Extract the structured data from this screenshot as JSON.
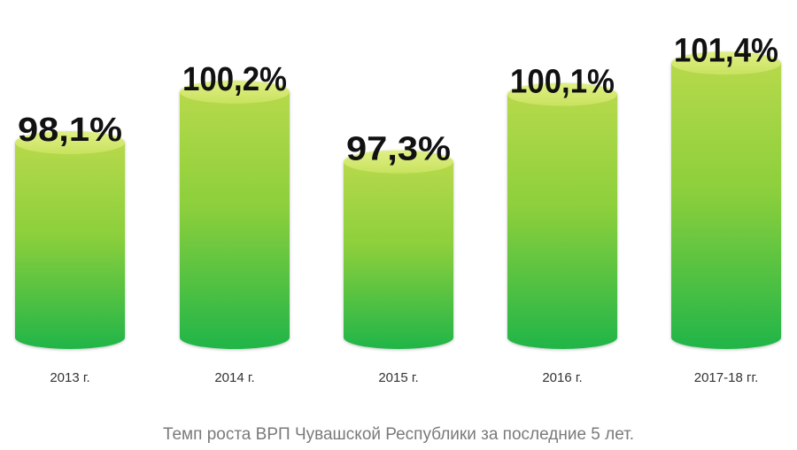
{
  "chart_data": {
    "type": "bar",
    "style": "3d-cylinder",
    "categories": [
      "2013 г.",
      "2014 г.",
      "2015 г.",
      "2016 г.",
      "2017-18 гг."
    ],
    "values": [
      98.1,
      100.2,
      97.3,
      100.1,
      101.4
    ],
    "value_labels": [
      "98,1%",
      "100,2%",
      "97,3%",
      "100,1%",
      "101,4%"
    ],
    "title": "",
    "caption": "Темп роста ВРП Чувашской Республики за последние 5 лет.",
    "xlabel": "",
    "ylabel": "",
    "ylim": [
      90,
      102
    ],
    "grid": false,
    "legend": "none",
    "colors": {
      "bar_top": "#b6d94a",
      "bar_mid": "#8ccf3c",
      "bar_bottom": "#20b548",
      "bar_cap": "#d4ea6f",
      "value_text": "#111111",
      "category_text": "#333333",
      "caption_text": "#7a7a7a"
    }
  }
}
